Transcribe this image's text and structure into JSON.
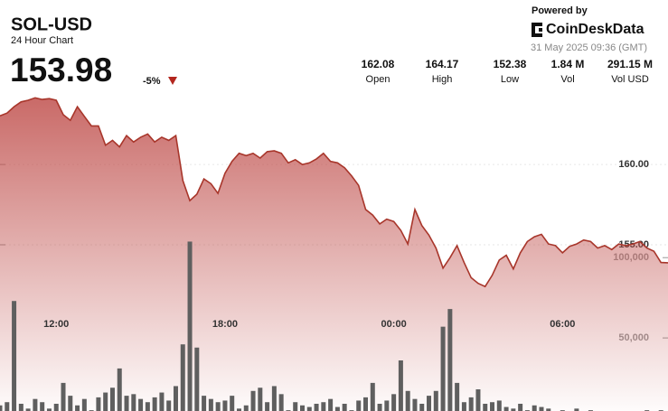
{
  "branding": {
    "powered_by": "Powered by",
    "logo": "CoinDeskData",
    "timestamp": "31 May 2025 09:36 (GMT)"
  },
  "chart_data": {
    "type": "area",
    "title": "SOL-USD",
    "subtitle": "24 Hour Chart",
    "last": 153.98,
    "change": {
      "value": -5,
      "label": "-5%"
    },
    "stats": [
      {
        "name": "Open",
        "value": 162.08
      },
      {
        "name": "High",
        "value": 164.17
      },
      {
        "name": "Low",
        "value": 152.38
      },
      {
        "name": "Vol",
        "value": 1840000,
        "value_label": "1.84 M"
      },
      {
        "name": "Vol USD",
        "value": 291150000,
        "value_label": "291.15 M"
      }
    ],
    "categories": [
      null,
      null,
      null,
      null,
      null,
      null,
      null,
      null,
      "12:00",
      null,
      null,
      null,
      null,
      null,
      null,
      null,
      null,
      null,
      null,
      null,
      null,
      null,
      null,
      null,
      null,
      null,
      null,
      null,
      null,
      null,
      null,
      null,
      "18:00",
      null,
      null,
      null,
      null,
      null,
      null,
      null,
      null,
      null,
      null,
      null,
      null,
      null,
      null,
      null,
      null,
      null,
      null,
      null,
      null,
      null,
      null,
      null,
      "00:00",
      null,
      null,
      null,
      null,
      null,
      null,
      null,
      null,
      null,
      null,
      null,
      null,
      null,
      null,
      null,
      null,
      null,
      null,
      null,
      null,
      null,
      null,
      null,
      "06:00",
      null,
      null,
      null,
      null,
      null,
      null,
      null,
      null,
      null,
      null,
      null,
      null,
      null,
      null,
      null
    ],
    "series": [
      {
        "color": "#a8362b",
        "fill": "#c0504d",
        "values": [
          163.03,
          163.2,
          163.6,
          163.9,
          164.0,
          164.15,
          164.05,
          164.1,
          164.0,
          163.1,
          162.75,
          163.6,
          163.0,
          162.4,
          162.4,
          161.2,
          161.5,
          161.1,
          161.8,
          161.4,
          161.7,
          161.9,
          161.4,
          161.7,
          161.5,
          161.8,
          159.0,
          157.75,
          158.15,
          159.1,
          158.8,
          158.2,
          159.45,
          160.2,
          160.7,
          160.55,
          160.7,
          160.4,
          160.8,
          160.85,
          160.7,
          160.1,
          160.3,
          160.0,
          160.1,
          160.35,
          160.7,
          160.2,
          160.1,
          159.8,
          159.3,
          158.7,
          157.2,
          156.85,
          156.3,
          156.6,
          156.45,
          155.9,
          155.05,
          157.2,
          156.2,
          155.6,
          154.8,
          153.55,
          154.2,
          154.95,
          153.9,
          152.95,
          152.6,
          152.4,
          153.1,
          154.05,
          154.35,
          153.5,
          154.5,
          155.2,
          155.5,
          155.65,
          155.05,
          154.95,
          154.5,
          154.9,
          155.05,
          155.3,
          155.2,
          154.8,
          154.95,
          154.7,
          155.05,
          154.95,
          155.05,
          155.2,
          154.8,
          154.6,
          153.9,
          153.88
        ]
      },
      {
        "color": "#5f5f5f",
        "axis": "y2",
        "type": "bar",
        "values": [
          8000,
          10000,
          73000,
          9000,
          6000,
          12000,
          10000,
          6000,
          9000,
          22000,
          14000,
          8000,
          12000,
          5000,
          13000,
          16000,
          19000,
          31000,
          14000,
          15000,
          12000,
          10000,
          13000,
          16000,
          11000,
          20000,
          46000,
          110000,
          44000,
          14000,
          12000,
          10000,
          11000,
          14000,
          6000,
          8000,
          17000,
          19000,
          10000,
          20000,
          15000,
          5000,
          10000,
          8000,
          7000,
          9000,
          10000,
          12000,
          7000,
          9000,
          5000,
          11000,
          13000,
          22000,
          9000,
          11000,
          15000,
          36000,
          17000,
          12000,
          9000,
          14000,
          17000,
          57000,
          68000,
          22000,
          10000,
          13000,
          18000,
          9000,
          10000,
          11000,
          7000,
          6000,
          9000,
          5000,
          8000,
          7000,
          6000,
          4000,
          5000,
          4000,
          6000,
          3000,
          5000,
          4000,
          3000,
          4000,
          2000,
          3000,
          2000,
          4000,
          5000,
          4000,
          5000,
          3000
        ]
      }
    ],
    "ylim": [
      144.2,
      164.9
    ],
    "yticks": [
      {
        "value": 160,
        "label": "160.00"
      },
      {
        "value": 155,
        "label": "155.00"
      }
    ],
    "y2lim": [
      0,
      207000
    ],
    "y2ticks": [
      {
        "value": 100000,
        "label": "100,000"
      },
      {
        "value": 50000,
        "label": "50,000"
      }
    ],
    "grid": true,
    "down_color": "#b3261e"
  }
}
